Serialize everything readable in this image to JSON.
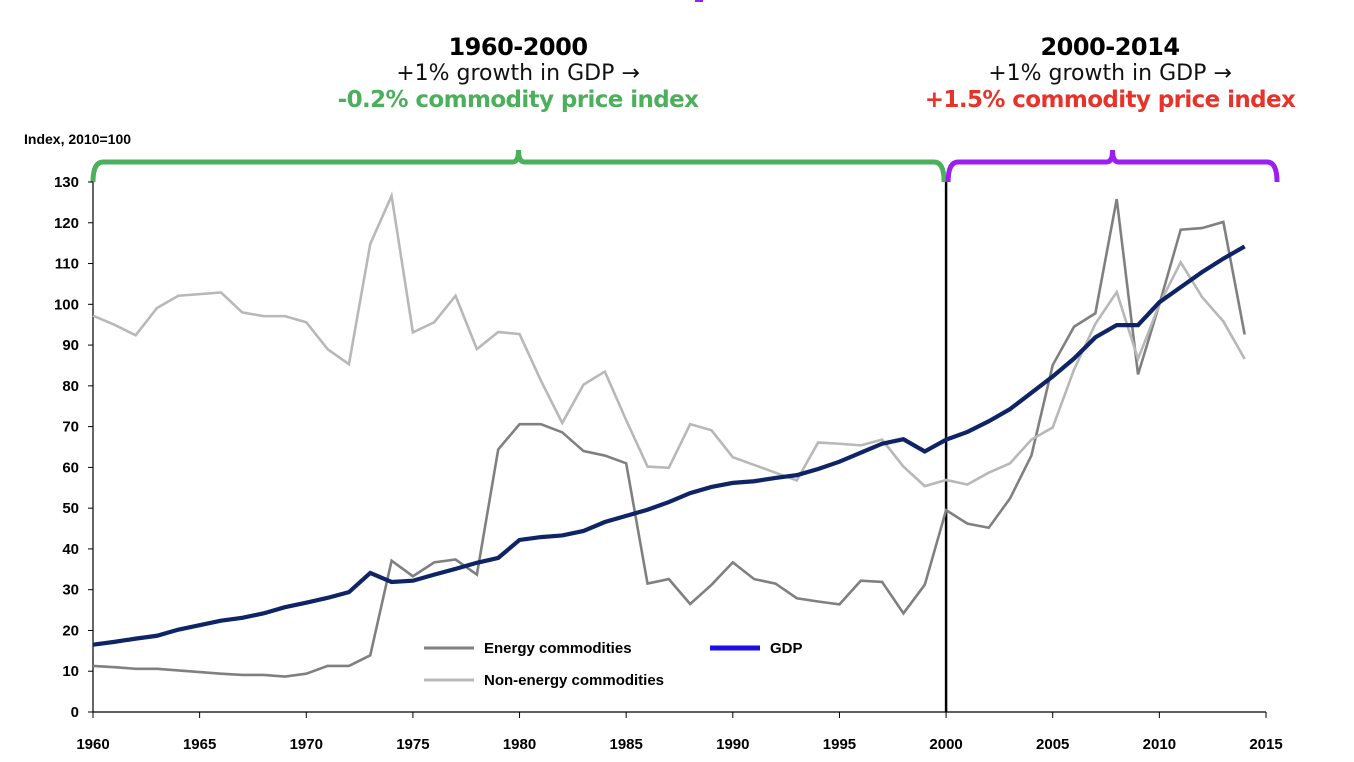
{
  "page": {
    "top_fragment_color": "#9b1ff2"
  },
  "annotations": {
    "left": {
      "period": "1960-2000",
      "growth": "+1% growth in GDP →",
      "effect": "-0.2% commodity price index",
      "effect_color": "#4caf5c",
      "bracket_color": "#4caf5c"
    },
    "right": {
      "period": "2000-2014",
      "growth": "+1% growth in GDP →",
      "effect": "+1.5% commodity price index",
      "effect_color": "#e8332a",
      "bracket_color": "#9b1ff2"
    }
  },
  "chart_data": {
    "type": "line",
    "title": "",
    "xlabel": "",
    "ylabel": "Index, 2010=100",
    "xlim": [
      1960,
      2015
    ],
    "ylim": [
      0,
      130
    ],
    "x_ticks": [
      1960,
      1965,
      1970,
      1975,
      1980,
      1985,
      1990,
      1995,
      2000,
      2005,
      2010,
      2015
    ],
    "y_ticks": [
      0,
      10,
      20,
      30,
      40,
      50,
      60,
      70,
      80,
      90,
      100,
      110,
      120,
      130
    ],
    "grid": false,
    "legend_position": "bottom-center",
    "reference_line": {
      "x": 2000,
      "color": "#000000"
    },
    "x": [
      1960,
      1961,
      1962,
      1963,
      1964,
      1965,
      1966,
      1967,
      1968,
      1969,
      1970,
      1971,
      1972,
      1973,
      1974,
      1975,
      1976,
      1977,
      1978,
      1979,
      1980,
      1981,
      1982,
      1983,
      1984,
      1985,
      1986,
      1987,
      1988,
      1989,
      1990,
      1991,
      1992,
      1993,
      1994,
      1995,
      1996,
      1997,
      1998,
      1999,
      2000,
      2001,
      2002,
      2003,
      2004,
      2005,
      2006,
      2007,
      2008,
      2009,
      2010,
      2011,
      2012,
      2013,
      2014
    ],
    "series": [
      {
        "name": "Energy commodities",
        "color": "#808080",
        "legend_color": "#808080",
        "values": [
          11.3,
          11.0,
          10.6,
          10.6,
          10.2,
          9.8,
          9.4,
          9.1,
          9.1,
          8.7,
          9.4,
          11.3,
          11.3,
          13.9,
          37.1,
          33.3,
          36.7,
          37.4,
          33.7,
          64.4,
          70.6,
          70.6,
          68.6,
          64.0,
          62.9,
          61.0,
          31.5,
          32.6,
          26.5,
          31.2,
          36.7,
          32.6,
          31.5,
          27.9,
          27.1,
          26.4,
          32.2,
          31.9,
          24.2,
          31.2,
          49.5,
          46.2,
          45.2,
          52.4,
          62.9,
          85.1,
          94.5,
          97.8,
          125.8,
          82.8,
          100.0,
          118.3,
          118.7,
          120.2,
          92.6
        ]
      },
      {
        "name": "Non-energy commodities",
        "color": "#b8b8b8",
        "legend_color": "#b8b8b8",
        "values": [
          97.2,
          95.0,
          92.4,
          99.1,
          102.1,
          102.5,
          102.9,
          98.0,
          97.1,
          97.1,
          95.6,
          89.0,
          85.3,
          114.8,
          126.6,
          93.1,
          95.6,
          102.1,
          89.0,
          93.2,
          92.7,
          81.3,
          70.9,
          80.3,
          83.5,
          71.6,
          60.2,
          59.9,
          70.6,
          69.1,
          62.5,
          60.6,
          58.7,
          56.8,
          66.1,
          65.8,
          65.4,
          66.8,
          60.2,
          55.4,
          56.9,
          55.8,
          58.7,
          61.0,
          66.8,
          69.8,
          84.0,
          95.2,
          103.0,
          86.6,
          100.0,
          110.3,
          101.8,
          95.8,
          86.6
        ]
      },
      {
        "name": "GDP",
        "color": "#0f2466",
        "legend_color": "#1a10e6",
        "values": [
          16.5,
          17.2,
          18.0,
          18.7,
          20.2,
          21.3,
          22.4,
          23.1,
          24.2,
          25.7,
          26.8,
          28.0,
          29.4,
          34.1,
          31.9,
          32.2,
          33.7,
          35.1,
          36.6,
          37.8,
          42.2,
          42.9,
          43.3,
          44.4,
          46.6,
          48.1,
          49.6,
          51.5,
          53.7,
          55.2,
          56.2,
          56.6,
          57.4,
          58.1,
          59.6,
          61.4,
          63.6,
          65.8,
          66.9,
          63.9,
          66.8,
          68.7,
          71.3,
          74.3,
          78.3,
          82.3,
          86.7,
          91.9,
          94.9,
          94.9,
          100.5,
          104.2,
          107.9,
          111.2,
          114.2
        ]
      }
    ]
  }
}
